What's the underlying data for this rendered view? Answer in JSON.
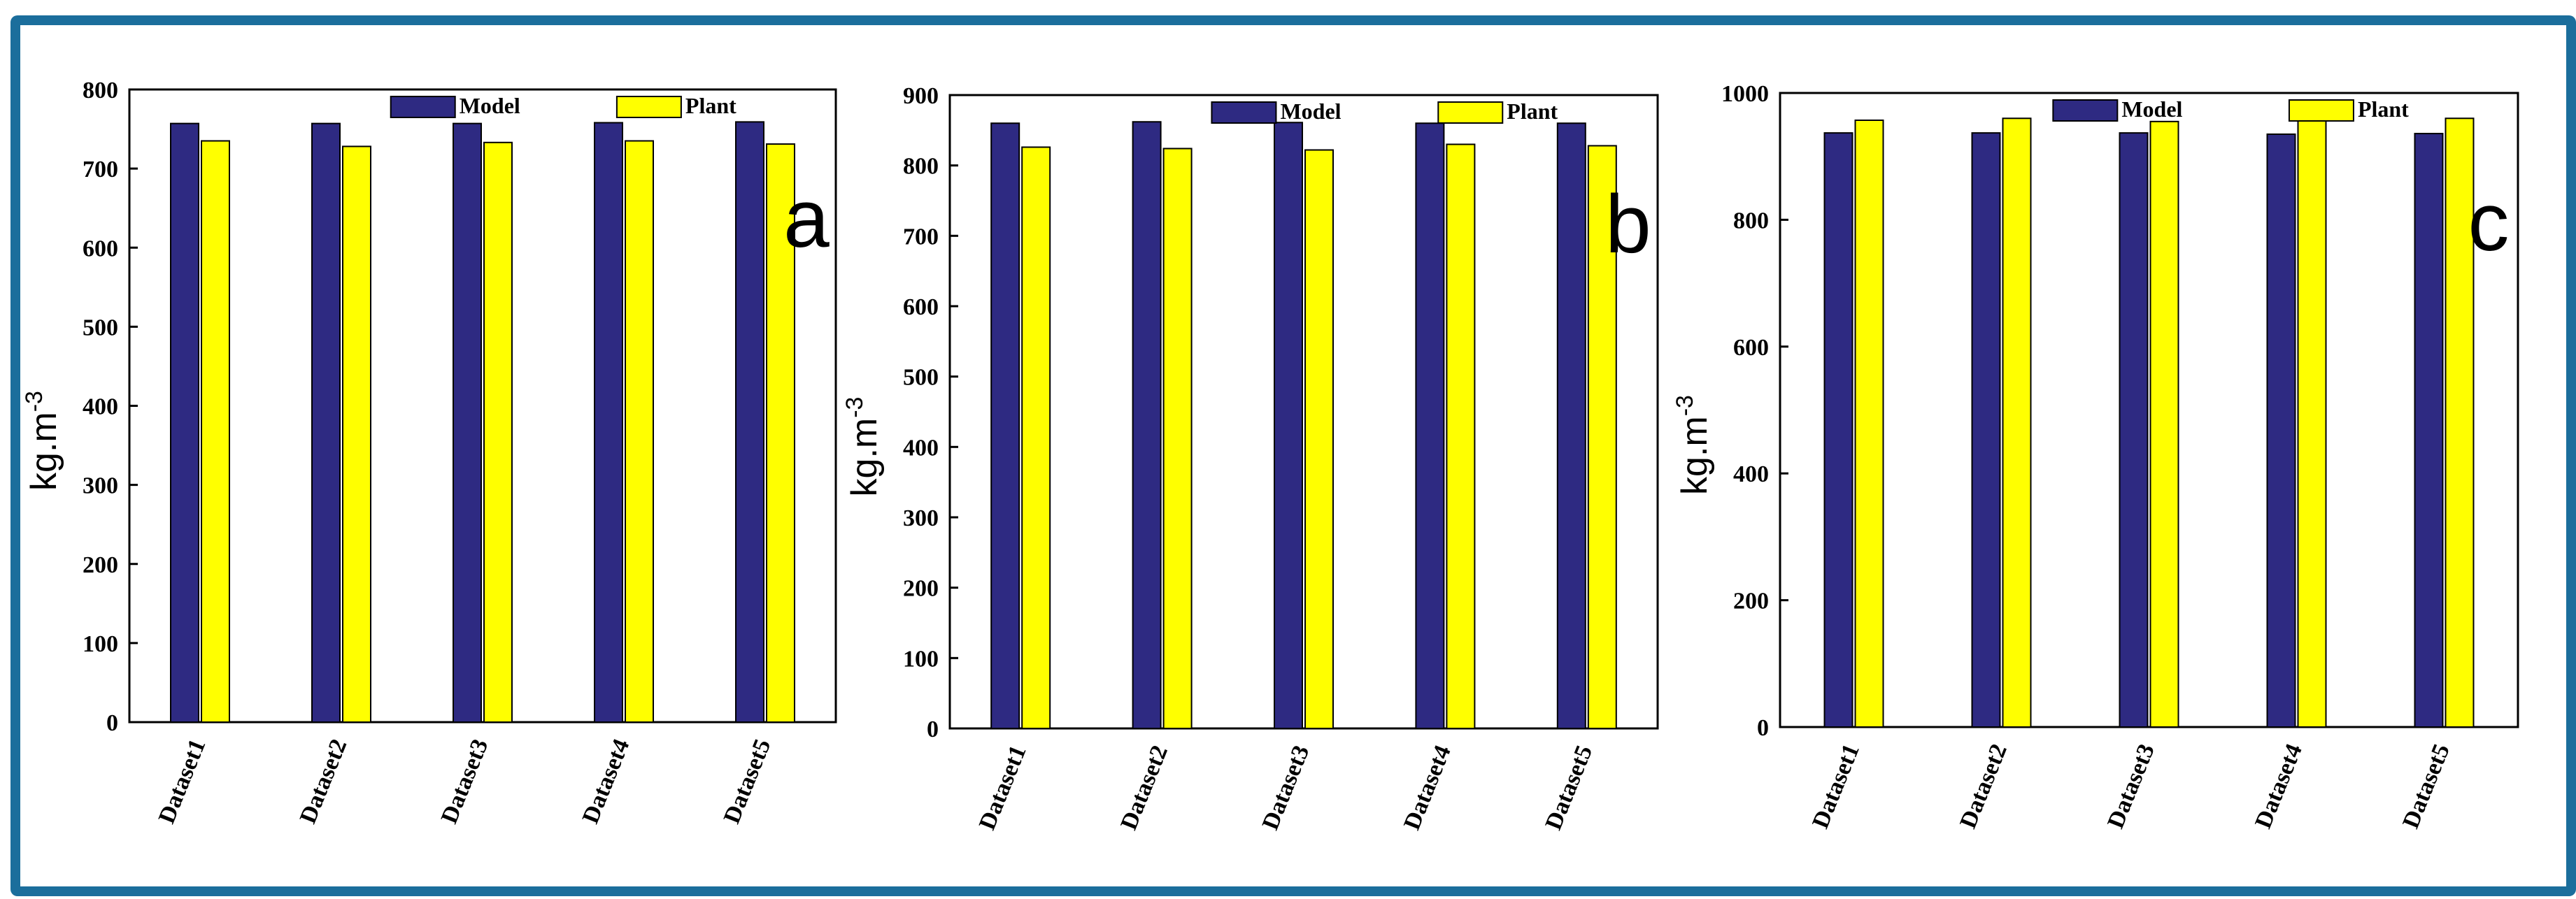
{
  "colors": {
    "model": "#2e2a82",
    "plant": "#ffff00",
    "frame": "#1b6e9c"
  },
  "chart_data": [
    {
      "type": "bar",
      "panel_label": "a",
      "categories": [
        "Dataset1",
        "Dataset2",
        "Dataset3",
        "Dataset4",
        "Dataset5"
      ],
      "series": [
        {
          "name": "Model",
          "values": [
            757,
            757,
            757,
            758,
            759
          ]
        },
        {
          "name": "Plant",
          "values": [
            735,
            728,
            733,
            735,
            731
          ]
        }
      ],
      "ylabel": "kg.m-3",
      "ylim": [
        0,
        800
      ],
      "yticks": [
        0,
        100,
        200,
        300,
        400,
        500,
        600,
        700,
        800
      ]
    },
    {
      "type": "bar",
      "panel_label": "b",
      "categories": [
        "Dataset1",
        "Dataset2",
        "Dataset3",
        "Dataset4",
        "Dataset5"
      ],
      "series": [
        {
          "name": "Model",
          "values": [
            860,
            862,
            861,
            860,
            860
          ]
        },
        {
          "name": "Plant",
          "values": [
            826,
            824,
            822,
            830,
            828
          ]
        }
      ],
      "ylabel": "kg.m-3",
      "ylim": [
        0,
        900
      ],
      "yticks": [
        0,
        100,
        200,
        300,
        400,
        500,
        600,
        700,
        800,
        900
      ]
    },
    {
      "type": "bar",
      "panel_label": "c",
      "categories": [
        "Dataset1",
        "Dataset2",
        "Dataset3",
        "Dataset4",
        "Dataset5"
      ],
      "series": [
        {
          "name": "Model",
          "values": [
            937,
            937,
            937,
            935,
            936
          ]
        },
        {
          "name": "Plant",
          "values": [
            957,
            960,
            955,
            961,
            960
          ]
        }
      ],
      "ylabel": "kg.m-3",
      "ylim": [
        0,
        1000
      ],
      "yticks": [
        0,
        200,
        400,
        600,
        800,
        1000
      ]
    }
  ]
}
